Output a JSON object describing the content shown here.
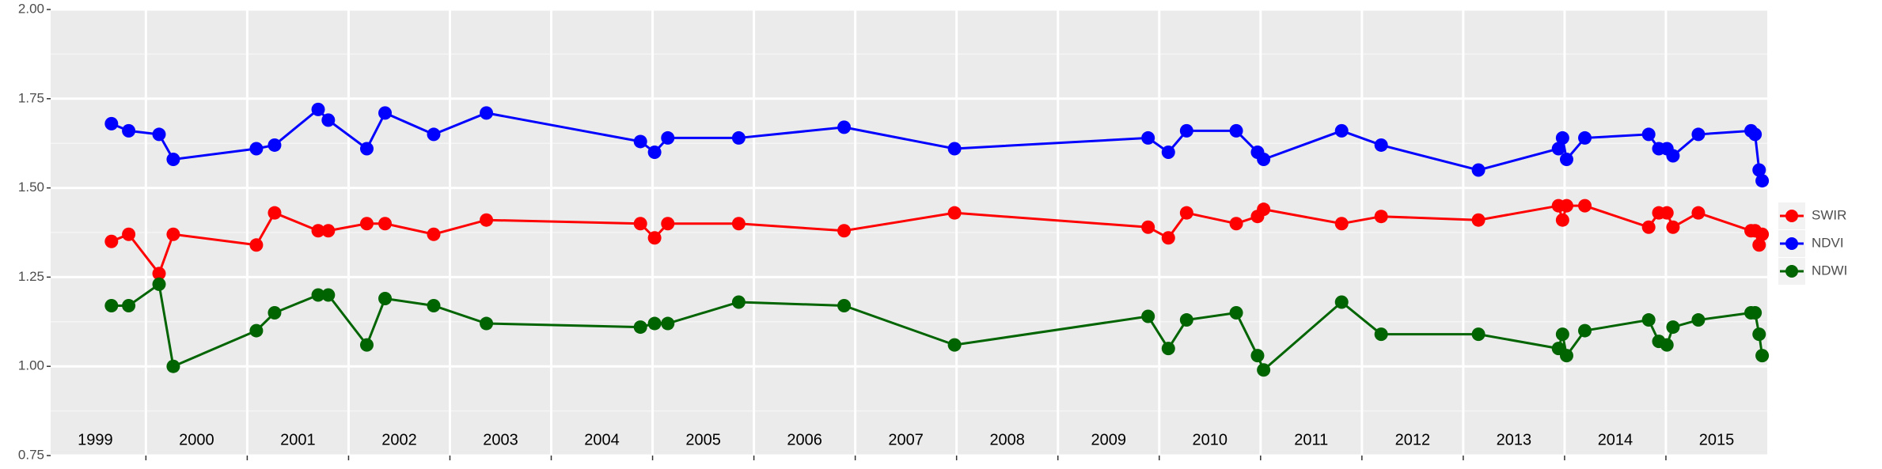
{
  "chart_data": {
    "type": "line",
    "x": [
      1999.66,
      1999.83,
      2000.13,
      2000.27,
      2001.09,
      2001.27,
      2001.7,
      2001.8,
      2002.18,
      2002.36,
      2002.84,
      2003.36,
      2004.88,
      2005.02,
      2005.15,
      2005.85,
      2006.89,
      2007.98,
      2009.89,
      2010.09,
      2010.27,
      2010.76,
      2010.97,
      2011.03,
      2011.8,
      2012.19,
      2013.15,
      2013.94,
      2013.98,
      2014.02,
      2014.2,
      2014.83,
      2014.93,
      2015.01,
      2015.07,
      2015.32,
      2015.84,
      2015.88,
      2015.92,
      2015.95
    ],
    "series": [
      {
        "name": "SWIR",
        "color": "#ff0000",
        "values": [
          1.35,
          1.37,
          1.26,
          1.37,
          1.34,
          1.43,
          1.38,
          1.38,
          1.4,
          1.4,
          1.37,
          1.41,
          1.4,
          1.36,
          1.4,
          1.4,
          1.38,
          1.43,
          1.39,
          1.36,
          1.43,
          1.4,
          1.42,
          1.44,
          1.4,
          1.42,
          1.41,
          1.45,
          1.41,
          1.45,
          1.45,
          1.39,
          1.43,
          1.43,
          1.39,
          1.43,
          1.38,
          1.38,
          1.34,
          1.37
        ]
      },
      {
        "name": "NDVI",
        "color": "#0000ff",
        "values": [
          1.68,
          1.66,
          1.65,
          1.58,
          1.61,
          1.62,
          1.72,
          1.69,
          1.61,
          1.71,
          1.65,
          1.71,
          1.63,
          1.6,
          1.64,
          1.64,
          1.67,
          1.61,
          1.64,
          1.6,
          1.66,
          1.66,
          1.6,
          1.58,
          1.66,
          1.62,
          1.55,
          1.61,
          1.64,
          1.58,
          1.64,
          1.65,
          1.61,
          1.61,
          1.59,
          1.65,
          1.66,
          1.65,
          1.55,
          1.52
        ]
      },
      {
        "name": "NDWI",
        "color": "#006400",
        "values": [
          1.17,
          1.17,
          1.23,
          1.0,
          1.1,
          1.15,
          1.2,
          1.2,
          1.06,
          1.19,
          1.17,
          1.12,
          1.11,
          1.12,
          1.12,
          1.18,
          1.17,
          1.06,
          1.14,
          1.05,
          1.13,
          1.15,
          1.03,
          0.99,
          1.18,
          1.09,
          1.09,
          1.05,
          1.09,
          1.03,
          1.1,
          1.13,
          1.07,
          1.06,
          1.11,
          1.13,
          1.15,
          1.15,
          1.09,
          1.03
        ]
      }
    ],
    "xlim": [
      1999.06,
      2016.0
    ],
    "xticks": [
      2000,
      2001,
      2002,
      2003,
      2004,
      2005,
      2006,
      2007,
      2008,
      2009,
      2010,
      2011,
      2012,
      2013,
      2014,
      2015
    ],
    "year_labels": [
      {
        "value": 1999.5,
        "label": "1999"
      },
      {
        "value": 2000.5,
        "label": "2000"
      },
      {
        "value": 2001.5,
        "label": "2001"
      },
      {
        "value": 2002.5,
        "label": "2002"
      },
      {
        "value": 2003.5,
        "label": "2003"
      },
      {
        "value": 2004.5,
        "label": "2004"
      },
      {
        "value": 2005.5,
        "label": "2005"
      },
      {
        "value": 2006.5,
        "label": "2006"
      },
      {
        "value": 2007.5,
        "label": "2007"
      },
      {
        "value": 2008.5,
        "label": "2008"
      },
      {
        "value": 2009.5,
        "label": "2009"
      },
      {
        "value": 2010.5,
        "label": "2010"
      },
      {
        "value": 2011.5,
        "label": "2011"
      },
      {
        "value": 2012.5,
        "label": "2012"
      },
      {
        "value": 2013.5,
        "label": "2013"
      },
      {
        "value": 2014.5,
        "label": "2014"
      },
      {
        "value": 2015.5,
        "label": "2015"
      }
    ],
    "ylim": [
      0.75,
      2.0
    ],
    "yticks": [
      0.75,
      {
        "value": 1.0,
        "label": "1.00"
      },
      1.25,
      {
        "value": 1.5,
        "label": "1.50"
      },
      1.75,
      {
        "value": 2.0,
        "label": "2.00"
      }
    ],
    "grid": true,
    "legend": "right"
  }
}
